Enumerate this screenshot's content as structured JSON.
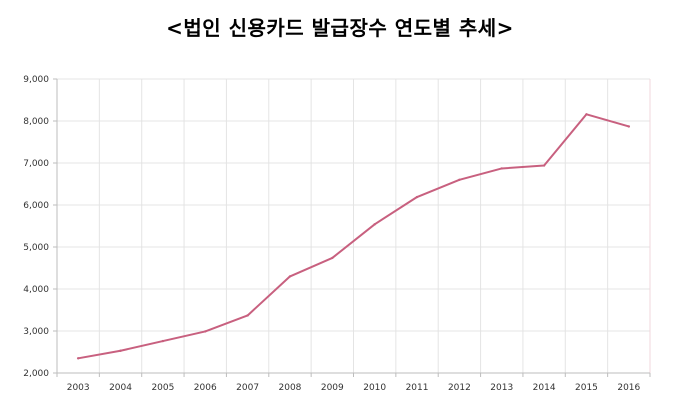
{
  "title": "<법인 신용카드 발급장수 연도별 추세>",
  "colors": {
    "line": "#c8607f",
    "grid": "#e4e4e4",
    "axis": "#bdbdbd",
    "frame": "#f2d7dd"
  },
  "chart_data": {
    "type": "line",
    "title": "<법인 신용카드 발급장수 연도별 추세>",
    "xlabel": "",
    "ylabel": "",
    "categories": [
      "2003",
      "2004",
      "2005",
      "2006",
      "2007",
      "2008",
      "2009",
      "2010",
      "2011",
      "2012",
      "2013",
      "2014",
      "2015",
      "2016"
    ],
    "series": [
      {
        "values": [
          2350,
          2530,
          2760,
          2990,
          3370,
          4300,
          4740,
          5540,
          6190,
          6600,
          6870,
          6940,
          8160,
          7870
        ]
      }
    ],
    "ylim": [
      2000,
      9000
    ],
    "yticks": [
      2000,
      3000,
      4000,
      5000,
      6000,
      7000,
      8000,
      9000
    ],
    "ytick_labels": [
      "2,000",
      "3,000",
      "4,000",
      "5,000",
      "6,000",
      "7,000",
      "8,000",
      "9,000"
    ],
    "grid": true,
    "legend": "none"
  }
}
